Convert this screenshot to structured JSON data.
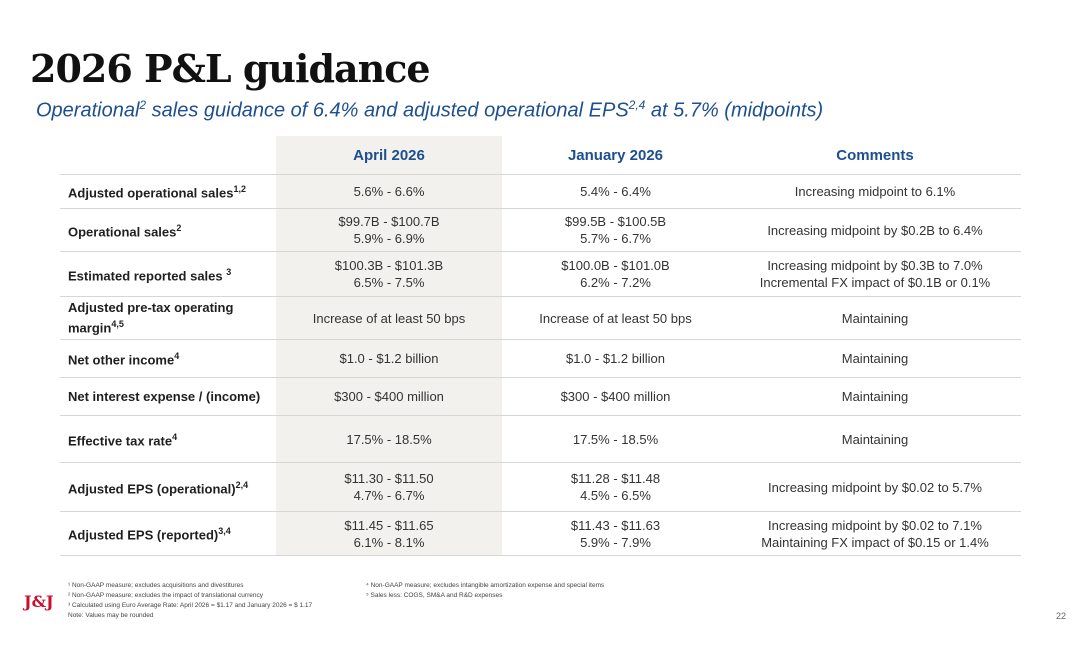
{
  "header": {
    "title": "2026 P&L guidance",
    "subtitle_a": "Operational",
    "subtitle_sup1": "2",
    "subtitle_b": " sales guidance of 6.4% and adjusted operational EPS",
    "subtitle_sup2": "2,4",
    "subtitle_c": " at 5.7% (midpoints)"
  },
  "table": {
    "columns": [
      "",
      "April 2026",
      "January 2026",
      "Comments"
    ],
    "rows": [
      {
        "label": "Adjusted operational sales",
        "sup": "1,2",
        "april": [
          "5.6% - 6.6%"
        ],
        "january": [
          "5.4% - 6.4%"
        ],
        "comments": [
          "Increasing midpoint to 6.1%"
        ]
      },
      {
        "label": "Operational sales",
        "sup": "2",
        "april": [
          "$99.7B - $100.7B",
          "5.9% - 6.9%"
        ],
        "january": [
          "$99.5B - $100.5B",
          "5.7% - 6.7%"
        ],
        "comments": [
          "Increasing midpoint by $0.2B to 6.4%"
        ]
      },
      {
        "label": "Estimated reported sales ",
        "sup": "3",
        "april": [
          "$100.3B - $101.3B",
          "6.5% - 7.5%"
        ],
        "january": [
          "$100.0B - $101.0B",
          "6.2% - 7.2%"
        ],
        "comments": [
          "Increasing midpoint by $0.3B to 7.0%",
          "Incremental FX impact of $0.1B or 0.1%"
        ]
      },
      {
        "label": "Adjusted pre-tax operating margin",
        "sup": "4,5",
        "april": [
          "Increase of at least 50 bps"
        ],
        "january": [
          "Increase of at least 50 bps"
        ],
        "comments": [
          "Maintaining"
        ]
      },
      {
        "label": "Net other income",
        "sup": "4",
        "april": [
          "$1.0 - $1.2 billion"
        ],
        "january": [
          "$1.0 - $1.2 billion"
        ],
        "comments": [
          "Maintaining"
        ]
      },
      {
        "label": "Net interest expense / (income)",
        "sup": "",
        "april": [
          "$300 - $400 million"
        ],
        "january": [
          "$300 - $400 million"
        ],
        "comments": [
          "Maintaining"
        ]
      },
      {
        "label": "Effective tax rate",
        "sup": "4",
        "april": [
          "17.5% - 18.5%"
        ],
        "january": [
          "17.5% - 18.5%"
        ],
        "comments": [
          "Maintaining"
        ]
      },
      {
        "label": "Adjusted EPS (operational)",
        "sup": "2,4",
        "april": [
          "$11.30 - $11.50",
          "4.7% - 6.7%"
        ],
        "january": [
          "$11.28 - $11.48",
          "4.5% - 6.5%"
        ],
        "comments": [
          "Increasing midpoint by $0.02 to 5.7%"
        ]
      },
      {
        "label": "Adjusted EPS (reported)",
        "sup": "3,4",
        "april": [
          "$11.45 - $11.65",
          "6.1% - 8.1%"
        ],
        "january": [
          "$11.43 - $11.63",
          "5.9% - 7.9%"
        ],
        "comments": [
          "Increasing midpoint by $0.02 to 7.1%",
          "Maintaining FX impact of $0.15 or 1.4%"
        ]
      }
    ]
  },
  "footnotes": {
    "left": [
      "¹ Non-GAAP measure; excludes acquisitions and divestitures",
      "² Non-GAAP measure; excludes the impact of translational currency",
      "³ Calculated using Euro Average Rate: April 2026 = $1.17 and January 2026 = $ 1.17",
      "   Note: Values may be rounded"
    ],
    "right": [
      "⁴ Non-GAAP measure; excludes intangible amortization expense and special items",
      "⁵ Sales less: COGS, SM&A and R&D expenses"
    ]
  },
  "logo_text": "J&J",
  "page_number": "22",
  "colors": {
    "accent": "#1d4f91",
    "brand": "#c8102e",
    "highlight_column": "#f2f1ee"
  }
}
